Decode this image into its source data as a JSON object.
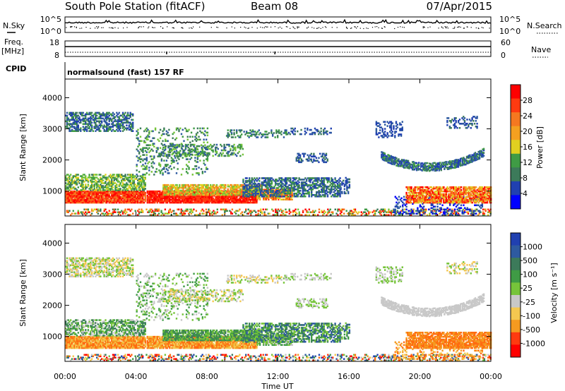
{
  "header": {
    "station": "South Pole Station (fitACF)",
    "beam": "Beam 08",
    "date": "07/Apr/2015"
  },
  "noise_panel": {
    "left_label": "N.Sky",
    "right_label": "N.Search",
    "left_ticks": [
      "10^5",
      "10^0"
    ],
    "right_ticks": [
      "10^5",
      "10^0"
    ]
  },
  "freq_panel": {
    "left_label_1": "Freq.",
    "left_label_2": "[MHz]",
    "right_label": "Nave",
    "left_ticks": [
      "18",
      "8"
    ],
    "right_ticks": [
      "60",
      "0"
    ]
  },
  "cpid": {
    "label": "CPID",
    "program": "normalsound (fast) 157 RF"
  },
  "colors": {
    "power": [
      "#0000ff",
      "#2040b0",
      "#2e5aa0",
      "#3c7a5a",
      "#3f9b45",
      "#76c43a",
      "#e0d020",
      "#f4a020",
      "#f57820",
      "#ff3a10",
      "#ff0000"
    ],
    "velocity": [
      "#ff0000",
      "#ff3a10",
      "#ff6a10",
      "#f59a20",
      "#f4c850",
      "#c8c8c8",
      "#76c43a",
      "#3f9b45",
      "#3c7a5a",
      "#2e5aa0",
      "#2040b0"
    ]
  },
  "chart_data": [
    {
      "type": "heatmap",
      "name": "power",
      "ylabel": "Slant Range [km]",
      "yticks": [
        1000,
        2000,
        3000,
        4000
      ],
      "ylim": [
        200,
        4600
      ],
      "xlim": [
        0,
        24
      ],
      "colorbar": {
        "label": "Power [dB]",
        "ticks": [
          4,
          8,
          12,
          16,
          20,
          24,
          28
        ],
        "range": [
          0,
          32
        ]
      }
    },
    {
      "type": "heatmap",
      "name": "velocity",
      "ylabel": "Slant Range [km]",
      "yticks": [
        1000,
        2000,
        3000,
        4000
      ],
      "ylim": [
        200,
        4600
      ],
      "xlim": [
        0,
        24
      ],
      "xlabel": "Time UT",
      "xticks": [
        "00:00",
        "04:00",
        "08:00",
        "12:00",
        "16:00",
        "20:00",
        "00:00"
      ],
      "colorbar": {
        "label": "Velocity [m s⁻¹]",
        "ticks": [
          "1000",
          "500",
          "100",
          "25",
          "-25",
          "-100",
          "-500",
          "-1000"
        ]
      }
    }
  ]
}
